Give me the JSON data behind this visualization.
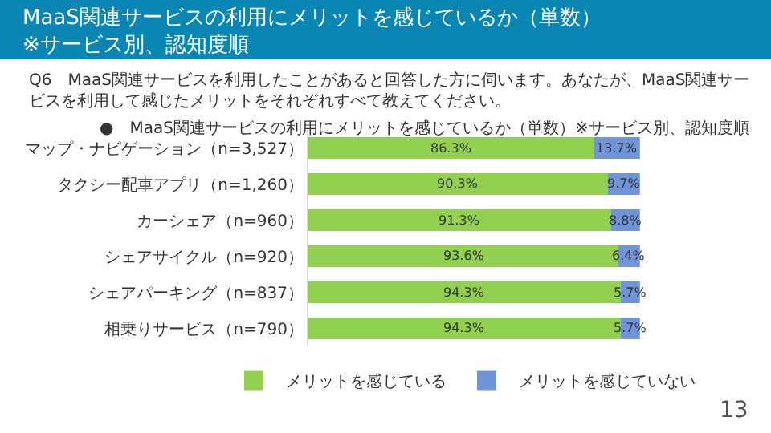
{
  "chart_data": {
    "type": "bar",
    "orientation": "horizontal",
    "stacked": true,
    "title": "MaaS関連サービスの利用にメリットを感じているか（単数）\n※サービス別、認知度順",
    "subtitle": "Q6　MaaS関連サービスを利用したことがあると回答した方に伺います。あなたが、MaaS関連サービスを利用して感じたメリットをそれぞれすべて教えてください。",
    "annotations": [
      "●　MaaS関連サービスの利用にメリットを感じているか（単数）※サービス別、認知度順",
      "13"
    ],
    "categories": [
      "マップ・ナビゲーション（n=3,527）",
      "タクシー配車アプリ（n=1,260）",
      "カーシェア（n=960）",
      "シェアサイクル（n=920）",
      "シェアパーキング（n=837）",
      "相乗りサービス（n=790）"
    ],
    "xlim": [
      0,
      100
    ],
    "series": [
      {
        "name": "メリットを感じている",
        "color": "#92d050",
        "values": [
          86.3,
          90.3,
          91.3,
          93.6,
          94.3,
          94.3
        ],
        "value_labels": [
          "86.3%",
          "90.3%",
          "91.3%",
          "93.6%",
          "94.3%",
          "94.3%"
        ]
      },
      {
        "name": "メリットを感じていない",
        "color": "#7094d8",
        "values": [
          13.7,
          9.7,
          8.8,
          6.4,
          5.7,
          5.7
        ],
        "value_labels": [
          "13.7%",
          "9.7%",
          "8.8%",
          "6.4%",
          "5.7%",
          "5.7%"
        ]
      }
    ],
    "legend": "bottom",
    "tick_labels": "y"
  }
}
